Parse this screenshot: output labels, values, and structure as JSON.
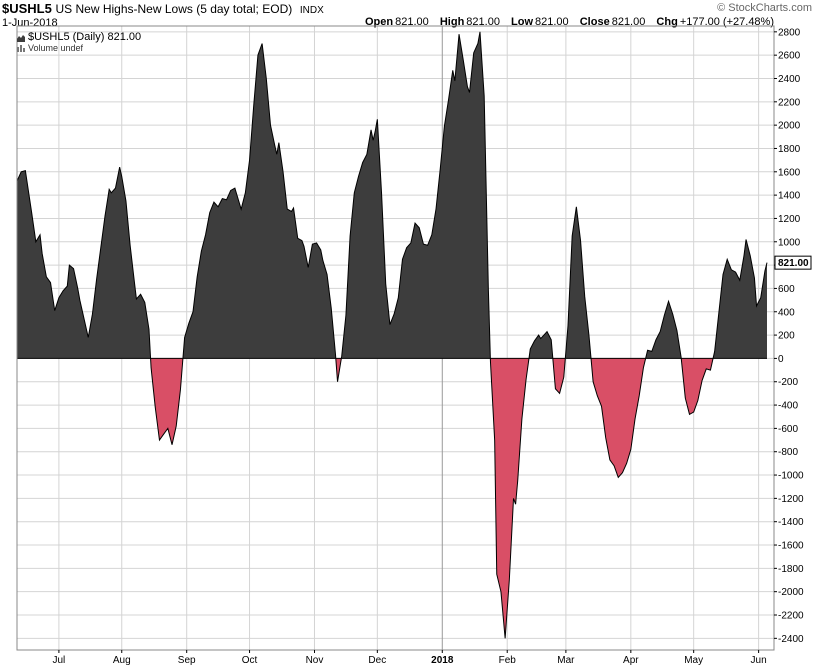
{
  "header": {
    "symbol": "$USHL5",
    "description": "US New Highs-New Lows (5 day total; EOD)",
    "exchange": "INDX",
    "date": "1-Jun-2018",
    "brand": "© StockCharts.com",
    "open_label": "Open",
    "open": "821.00",
    "high_label": "High",
    "high": "821.00",
    "low_label": "Low",
    "low": "821.00",
    "close_label": "Close",
    "close": "821.00",
    "chg_label": "Chg",
    "chg": "+177.00 (+27.48%)"
  },
  "legend": {
    "series_label": "$USHL5 (Daily) 821.00",
    "volume_label": "Volume undef"
  },
  "colors": {
    "positive_fill": "#3d3d3d",
    "negative_fill": "#d94f66",
    "line": "#000000",
    "grid": "#d4d4d4",
    "zero_line": "#000000",
    "last_value_box": "#000000"
  },
  "chart_data": {
    "type": "area",
    "title": "US New Highs-New Lows (5 day total; EOD)",
    "xlabel": "",
    "ylabel": "",
    "ylim": [
      -2500,
      2850
    ],
    "yticks": [
      -2400,
      -2200,
      -2000,
      -1800,
      -1600,
      -1400,
      -1200,
      -1000,
      -800,
      -600,
      -400,
      -200,
      0,
      200,
      400,
      600,
      800,
      1000,
      1200,
      1400,
      1600,
      1800,
      2000,
      2200,
      2400,
      2600,
      2800
    ],
    "x_axis_labels": [
      {
        "label": "Jul",
        "day": 20
      },
      {
        "label": "Aug",
        "day": 50
      },
      {
        "label": "Sep",
        "day": 81
      },
      {
        "label": "Oct",
        "day": 111
      },
      {
        "label": "Nov",
        "day": 142
      },
      {
        "label": "Dec",
        "day": 172
      },
      {
        "label": "2018",
        "day": 203,
        "bold": true
      },
      {
        "label": "Feb",
        "day": 234
      },
      {
        "label": "Mar",
        "day": 262
      },
      {
        "label": "Apr",
        "day": 293
      },
      {
        "label": "May",
        "day": 323
      },
      {
        "label": "Jun",
        "day": 354
      }
    ],
    "x_domain": [
      0,
      355
    ],
    "last_value": "821.00",
    "series": [
      {
        "name": "$USHL5",
        "points": [
          [
            0,
            1520
          ],
          [
            2,
            1600
          ],
          [
            4,
            1610
          ],
          [
            7,
            1250
          ],
          [
            9,
            1000
          ],
          [
            11,
            1060
          ],
          [
            12,
            900
          ],
          [
            14,
            700
          ],
          [
            16,
            650
          ],
          [
            18,
            410
          ],
          [
            20,
            520
          ],
          [
            22,
            580
          ],
          [
            24,
            620
          ],
          [
            25,
            800
          ],
          [
            27,
            770
          ],
          [
            29,
            600
          ],
          [
            30,
            500
          ],
          [
            32,
            340
          ],
          [
            34,
            180
          ],
          [
            36,
            380
          ],
          [
            38,
            680
          ],
          [
            40,
            950
          ],
          [
            42,
            1220
          ],
          [
            44,
            1450
          ],
          [
            45,
            1420
          ],
          [
            47,
            1460
          ],
          [
            49,
            1640
          ],
          [
            50,
            1560
          ],
          [
            52,
            1350
          ],
          [
            54,
            970
          ],
          [
            56,
            660
          ],
          [
            57,
            510
          ],
          [
            59,
            550
          ],
          [
            61,
            480
          ],
          [
            63,
            250
          ],
          [
            64,
            -80
          ],
          [
            66,
            -420
          ],
          [
            68,
            -700
          ],
          [
            70,
            -650
          ],
          [
            72,
            -600
          ],
          [
            74,
            -740
          ],
          [
            76,
            -580
          ],
          [
            78,
            -270
          ],
          [
            80,
            180
          ],
          [
            82,
            300
          ],
          [
            84,
            400
          ],
          [
            86,
            700
          ],
          [
            88,
            920
          ],
          [
            90,
            1060
          ],
          [
            92,
            1250
          ],
          [
            94,
            1340
          ],
          [
            96,
            1300
          ],
          [
            98,
            1370
          ],
          [
            100,
            1360
          ],
          [
            102,
            1440
          ],
          [
            104,
            1460
          ],
          [
            105,
            1400
          ],
          [
            107,
            1280
          ],
          [
            109,
            1420
          ],
          [
            111,
            1700
          ],
          [
            113,
            2170
          ],
          [
            115,
            2600
          ],
          [
            117,
            2700
          ],
          [
            119,
            2400
          ],
          [
            121,
            2000
          ],
          [
            123,
            1830
          ],
          [
            124,
            1750
          ],
          [
            125,
            1850
          ],
          [
            127,
            1600
          ],
          [
            129,
            1280
          ],
          [
            131,
            1260
          ],
          [
            132,
            1290
          ],
          [
            134,
            1030
          ],
          [
            136,
            1010
          ],
          [
            137,
            960
          ],
          [
            139,
            780
          ],
          [
            141,
            980
          ],
          [
            143,
            990
          ],
          [
            145,
            930
          ],
          [
            146,
            840
          ],
          [
            148,
            720
          ],
          [
            150,
            430
          ],
          [
            152,
            40
          ],
          [
            153,
            -200
          ],
          [
            155,
            20
          ],
          [
            157,
            370
          ],
          [
            159,
            1050
          ],
          [
            161,
            1420
          ],
          [
            163,
            1560
          ],
          [
            165,
            1680
          ],
          [
            167,
            1750
          ],
          [
            169,
            1960
          ],
          [
            170,
            1870
          ],
          [
            171,
            1950
          ],
          [
            172,
            2050
          ],
          [
            174,
            1420
          ],
          [
            176,
            640
          ],
          [
            178,
            290
          ],
          [
            180,
            380
          ],
          [
            182,
            520
          ],
          [
            184,
            850
          ],
          [
            186,
            950
          ],
          [
            188,
            990
          ],
          [
            190,
            1160
          ],
          [
            192,
            1120
          ],
          [
            194,
            980
          ],
          [
            196,
            970
          ],
          [
            198,
            1060
          ],
          [
            200,
            1280
          ],
          [
            202,
            1620
          ],
          [
            204,
            1990
          ],
          [
            206,
            2220
          ],
          [
            208,
            2470
          ],
          [
            209,
            2380
          ],
          [
            211,
            2780
          ],
          [
            213,
            2560
          ],
          [
            215,
            2330
          ],
          [
            216,
            2280
          ],
          [
            218,
            2620
          ],
          [
            220,
            2700
          ],
          [
            221,
            2800
          ],
          [
            223,
            2250
          ],
          [
            225,
            590
          ],
          [
            226,
            -30
          ],
          [
            228,
            -700
          ],
          [
            229,
            -1850
          ],
          [
            231,
            -2000
          ],
          [
            233,
            -2400
          ],
          [
            235,
            -1900
          ],
          [
            237,
            -1200
          ],
          [
            238,
            -1250
          ],
          [
            239,
            -1050
          ],
          [
            241,
            -520
          ],
          [
            243,
            -180
          ],
          [
            245,
            80
          ],
          [
            247,
            150
          ],
          [
            249,
            200
          ],
          [
            250,
            170
          ],
          [
            252,
            210
          ],
          [
            253,
            230
          ],
          [
            255,
            160
          ],
          [
            257,
            -260
          ],
          [
            259,
            -300
          ],
          [
            261,
            -160
          ],
          [
            263,
            280
          ],
          [
            265,
            1050
          ],
          [
            267,
            1300
          ],
          [
            269,
            1010
          ],
          [
            271,
            530
          ],
          [
            273,
            200
          ],
          [
            275,
            -200
          ],
          [
            277,
            -320
          ],
          [
            279,
            -410
          ],
          [
            281,
            -680
          ],
          [
            283,
            -870
          ],
          [
            285,
            -920
          ],
          [
            287,
            -1020
          ],
          [
            289,
            -980
          ],
          [
            291,
            -900
          ],
          [
            293,
            -780
          ],
          [
            295,
            -520
          ],
          [
            297,
            -320
          ],
          [
            299,
            -80
          ],
          [
            301,
            70
          ],
          [
            303,
            60
          ],
          [
            305,
            160
          ],
          [
            307,
            230
          ],
          [
            309,
            370
          ],
          [
            311,
            490
          ],
          [
            313,
            380
          ],
          [
            315,
            240
          ],
          [
            317,
            10
          ],
          [
            319,
            -340
          ],
          [
            321,
            -480
          ],
          [
            323,
            -460
          ],
          [
            325,
            -360
          ],
          [
            327,
            -190
          ],
          [
            329,
            -90
          ],
          [
            331,
            -100
          ],
          [
            333,
            60
          ],
          [
            335,
            390
          ],
          [
            337,
            720
          ],
          [
            339,
            850
          ],
          [
            341,
            760
          ],
          [
            343,
            740
          ],
          [
            345,
            670
          ],
          [
            347,
            880
          ],
          [
            348,
            1020
          ],
          [
            350,
            880
          ],
          [
            352,
            690
          ],
          [
            353,
            450
          ],
          [
            355,
            520
          ],
          [
            357,
            750
          ],
          [
            358,
            821
          ]
        ]
      }
    ]
  }
}
